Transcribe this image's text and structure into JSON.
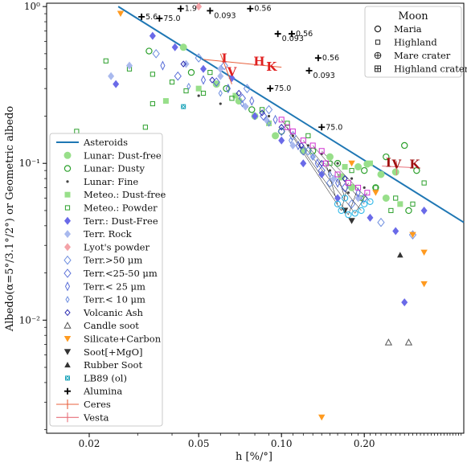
{
  "chart_data": {
    "type": "scatter",
    "xlabel": "h [%/°]",
    "ylabel": "Albedo(α=5°/3.1°/2°) or Geometric albedo",
    "x_scale": "log",
    "y_scale": "log",
    "xlim": [
      0.014,
      0.46
    ],
    "ylim": [
      0.0019,
      1.05
    ],
    "x_ticks": [
      {
        "value": 0.02,
        "label": "0.02"
      },
      {
        "value": 0.05,
        "label": "0.05"
      },
      {
        "value": 0.1,
        "label": "0.10"
      },
      {
        "value": 0.2,
        "label": "0.20"
      }
    ],
    "y_ticks": [
      {
        "value": 0.01,
        "label": "10⁻²"
      },
      {
        "value": 0.1,
        "label": "10⁻¹"
      },
      {
        "value": 1,
        "label": "10⁰"
      }
    ],
    "asteroid_line": {
      "name": "Asteroids",
      "points": [
        [
          0.0255,
          1.0
        ],
        [
          0.46,
          0.042
        ]
      ],
      "color": "#1f77b4"
    },
    "legend_main": [
      {
        "name": "Asteroids",
        "marker": "line",
        "color": "#1f77b4"
      },
      {
        "name": "Lunar: Dust-free",
        "marker": "circle-filled",
        "color": "#98df8a"
      },
      {
        "name": "Lunar: Dusty",
        "marker": "circle-open",
        "color": "#2ca02c"
      },
      {
        "name": "Lunar: Fine",
        "marker": "dot",
        "color": "#444444"
      },
      {
        "name": "Meteo.: Dust-free",
        "marker": "square-filled",
        "color": "#98df8a"
      },
      {
        "name": "Meteo.: Powder",
        "marker": "square-open",
        "color": "#2ca02c"
      },
      {
        "name": "Terr.: Dust-Free",
        "marker": "diamond-filled",
        "color": "#6a6ae8"
      },
      {
        "name": "Terr. Rock",
        "marker": "diamond-filled",
        "color": "#a9b9ee"
      },
      {
        "name": "Lyot's powder",
        "marker": "diamond-filled",
        "color": "#f4a3a8"
      },
      {
        "name": "Terr.>50 μm",
        "marker": "diamond-open",
        "color": "#6f8fe0"
      },
      {
        "name": "Terr.<25-50 μm",
        "marker": "diamond-open",
        "color": "#5a6fd8"
      },
      {
        "name": "Terr.< 25 μm",
        "marker": "diamond-open-thin",
        "color": "#5a6fd8"
      },
      {
        "name": "Terr.< 10 μm",
        "marker": "diamond-open-small",
        "color": "#6f8fe0"
      },
      {
        "name": "Volcanic Ash",
        "marker": "diamond-open-dark",
        "color": "#2b2bb0"
      },
      {
        "name": "Candle soot",
        "marker": "triangle-open",
        "color": "#555555"
      },
      {
        "name": "Silicate+Carbon",
        "marker": "triangle-down-filled",
        "color": "#ff9a1f"
      },
      {
        "name": "Soot[+MgO]",
        "marker": "triangle-down-filled",
        "color": "#333333"
      },
      {
        "name": "Rubber Soot",
        "marker": "triangle-filled",
        "color": "#333333"
      },
      {
        "name": "LB89 (ol)",
        "marker": "x-square",
        "color": "#17a2b8"
      },
      {
        "name": "Alumina",
        "marker": "plus",
        "color": "#000000"
      },
      {
        "name": "Ceres",
        "marker": "errbar",
        "color": "#e8603c"
      },
      {
        "name": "Vesta",
        "marker": "errbar",
        "color": "#e8707a"
      }
    ],
    "legend_moon": {
      "title": "Moon",
      "items": [
        {
          "name": "Maria",
          "marker": "circle-open"
        },
        {
          "name": "Highland",
          "marker": "square-open"
        },
        {
          "name": "Mare crater",
          "marker": "circle-plus"
        },
        {
          "name": "Highland crater",
          "marker": "square-plus"
        }
      ]
    },
    "alumina_points": [
      {
        "x": 0.043,
        "y": 0.97,
        "label": "1.9"
      },
      {
        "x": 0.055,
        "y": 0.94,
        "label": "0.093"
      },
      {
        "x": 0.077,
        "y": 0.97,
        "label": "0.56"
      },
      {
        "x": 0.031,
        "y": 0.86,
        "label": "5.6"
      },
      {
        "x": 0.036,
        "y": 0.84,
        "label": "75.0"
      },
      {
        "x": 0.097,
        "y": 0.67,
        "label": "0.093"
      },
      {
        "x": 0.109,
        "y": 0.67,
        "label": "0.56"
      },
      {
        "x": 0.136,
        "y": 0.47,
        "label": "0.56"
      },
      {
        "x": 0.126,
        "y": 0.39,
        "label": "0.093"
      },
      {
        "x": 0.091,
        "y": 0.3,
        "label": "75.0"
      },
      {
        "x": 0.14,
        "y": 0.17,
        "label": "75.0"
      }
    ],
    "annotations": [
      {
        "text": "I",
        "x": 0.062,
        "y": 0.44,
        "color": "#e02020"
      },
      {
        "text": "V",
        "x": 0.066,
        "y": 0.36,
        "color": "#e02020"
      },
      {
        "text": "H",
        "x": 0.083,
        "y": 0.42,
        "color": "#e02020"
      },
      {
        "text": "K",
        "x": 0.092,
        "y": 0.39,
        "color": "#e02020"
      },
      {
        "text": "I",
        "x": 0.245,
        "y": 0.095,
        "color": "#a01010"
      },
      {
        "text": "V",
        "x": 0.262,
        "y": 0.093,
        "color": "#a01010"
      },
      {
        "text": "K",
        "x": 0.305,
        "y": 0.093,
        "color": "#a01010"
      }
    ],
    "series": [
      {
        "name": "Lunar: Dust-free",
        "marker": "circle-filled",
        "color": "#98df8a",
        "points": [
          [
            0.044,
            0.55
          ],
          [
            0.058,
            0.32
          ],
          [
            0.07,
            0.25
          ],
          [
            0.08,
            0.2
          ],
          [
            0.095,
            0.15
          ],
          [
            0.12,
            0.12
          ],
          [
            0.15,
            0.11
          ],
          [
            0.19,
            0.095
          ],
          [
            0.23,
            0.085
          ],
          [
            0.26,
            0.088
          ],
          [
            0.205,
            0.099
          ],
          [
            0.165,
            0.082
          ],
          [
            0.18,
            0.07
          ],
          [
            0.24,
            0.06
          ]
        ]
      },
      {
        "name": "Lunar: Dusty",
        "marker": "circle-open",
        "color": "#2ca02c",
        "points": [
          [
            0.033,
            0.52
          ],
          [
            0.047,
            0.38
          ],
          [
            0.063,
            0.3
          ],
          [
            0.078,
            0.22
          ],
          [
            0.1,
            0.16
          ],
          [
            0.13,
            0.12
          ],
          [
            0.16,
            0.1
          ],
          [
            0.2,
            0.09
          ],
          [
            0.24,
            0.11
          ],
          [
            0.28,
            0.13
          ],
          [
            0.31,
            0.09
          ],
          [
            0.29,
            0.05
          ],
          [
            0.22,
            0.07
          ]
        ]
      },
      {
        "name": "Lunar: Fine",
        "marker": "dot",
        "color": "#444444",
        "points": [
          [
            0.05,
            0.27
          ],
          [
            0.06,
            0.24
          ],
          [
            0.075,
            0.23
          ],
          [
            0.09,
            0.2
          ],
          [
            0.11,
            0.15
          ],
          [
            0.125,
            0.13
          ],
          [
            0.14,
            0.115
          ],
          [
            0.16,
            0.1
          ],
          [
            0.18,
            0.08
          ],
          [
            0.2,
            0.07
          ],
          [
            0.175,
            0.065
          ],
          [
            0.15,
            0.09
          ]
        ]
      },
      {
        "name": "Meteo.: Dust-free",
        "marker": "square-filled",
        "color": "#98df8a",
        "points": [
          [
            0.038,
            0.25
          ],
          [
            0.05,
            0.3
          ],
          [
            0.068,
            0.27
          ],
          [
            0.09,
            0.18
          ],
          [
            0.17,
            0.095
          ],
          [
            0.21,
            0.1
          ],
          [
            0.27,
            0.055
          ]
        ]
      },
      {
        "name": "Meteo.: Powder",
        "marker": "square-open",
        "color": "#2ca02c",
        "points": [
          [
            0.023,
            0.45
          ],
          [
            0.028,
            0.4
          ],
          [
            0.034,
            0.37
          ],
          [
            0.04,
            0.33
          ],
          [
            0.052,
            0.28
          ],
          [
            0.066,
            0.26
          ],
          [
            0.085,
            0.22
          ],
          [
            0.105,
            0.18
          ],
          [
            0.125,
            0.15
          ],
          [
            0.15,
            0.1
          ],
          [
            0.18,
            0.09
          ],
          [
            0.22,
            0.07
          ],
          [
            0.26,
            0.06
          ],
          [
            0.3,
            0.055
          ],
          [
            0.33,
            0.075
          ],
          [
            0.25,
            0.05
          ],
          [
            0.195,
            0.06
          ],
          [
            0.034,
            0.24
          ],
          [
            0.032,
            0.17
          ],
          [
            0.018,
            0.16
          ],
          [
            0.045,
            0.29
          ],
          [
            0.055,
            0.38
          ]
        ]
      },
      {
        "name": "Terr.: Dust-Free",
        "marker": "diamond-filled",
        "color": "#6a6ae8",
        "points": [
          [
            0.034,
            0.65
          ],
          [
            0.041,
            0.55
          ],
          [
            0.052,
            0.4
          ],
          [
            0.066,
            0.35
          ],
          [
            0.08,
            0.2
          ],
          [
            0.1,
            0.14
          ],
          [
            0.12,
            0.1
          ],
          [
            0.14,
            0.085
          ],
          [
            0.16,
            0.06
          ],
          [
            0.21,
            0.045
          ],
          [
            0.26,
            0.037
          ],
          [
            0.33,
            0.05
          ],
          [
            0.28,
            0.013
          ],
          [
            0.025,
            0.32
          ]
        ]
      },
      {
        "name": "Terr. Rock",
        "marker": "diamond-filled",
        "color": "#a9b9ee",
        "points": [
          [
            0.028,
            0.42
          ],
          [
            0.045,
            0.43
          ],
          [
            0.06,
            0.4
          ],
          [
            0.074,
            0.23
          ],
          [
            0.088,
            0.19
          ],
          [
            0.11,
            0.13
          ],
          [
            0.13,
            0.11
          ],
          [
            0.155,
            0.08
          ],
          [
            0.19,
            0.06
          ],
          [
            0.024,
            0.36
          ],
          [
            0.06,
            0.36
          ]
        ]
      },
      {
        "name": "Lyot's powder",
        "marker": "diamond-filled",
        "color": "#f4a3a8",
        "points": [
          [
            0.05,
            1.0
          ]
        ]
      },
      {
        "name": "Terr.>50 μm",
        "marker": "diamond-open",
        "color": "#6f8fe0",
        "points": [
          [
            0.035,
            0.5
          ],
          [
            0.05,
            0.47
          ],
          [
            0.062,
            0.42
          ],
          [
            0.075,
            0.3
          ],
          [
            0.09,
            0.22
          ],
          [
            0.11,
            0.15
          ],
          [
            0.125,
            0.12
          ],
          [
            0.15,
            0.075
          ],
          [
            0.18,
            0.055
          ],
          [
            0.23,
            0.042
          ],
          [
            0.3,
            0.035
          ]
        ]
      },
      {
        "name": "Terr.<25-50 μm",
        "marker": "diamond-open",
        "color": "#5a6fd8",
        "points": [
          [
            0.042,
            0.36
          ],
          [
            0.058,
            0.33
          ],
          [
            0.072,
            0.26
          ],
          [
            0.086,
            0.2
          ],
          [
            0.1,
            0.16
          ],
          [
            0.12,
            0.12
          ],
          [
            0.14,
            0.09
          ],
          [
            0.17,
            0.07
          ],
          [
            0.2,
            0.06
          ]
        ]
      },
      {
        "name": "Terr.< 25 μm",
        "marker": "diamond-open-thin",
        "color": "#5a6fd8",
        "points": [
          [
            0.037,
            0.42
          ],
          [
            0.052,
            0.34
          ],
          [
            0.064,
            0.3
          ],
          [
            0.078,
            0.25
          ],
          [
            0.095,
            0.19
          ],
          [
            0.115,
            0.13
          ],
          [
            0.135,
            0.1
          ],
          [
            0.16,
            0.075
          ],
          [
            0.19,
            0.065
          ]
        ]
      },
      {
        "name": "Terr.< 10 μm",
        "marker": "diamond-open-small",
        "color": "#6f8fe0",
        "points": [
          [
            0.046,
            0.31
          ],
          [
            0.06,
            0.28
          ],
          [
            0.072,
            0.24
          ],
          [
            0.09,
            0.18
          ],
          [
            0.108,
            0.14
          ],
          [
            0.13,
            0.11
          ],
          [
            0.15,
            0.085
          ]
        ]
      },
      {
        "name": "Volcanic Ash",
        "marker": "diamond-open-dark",
        "color": "#2b2bb0",
        "points": [
          [
            0.044,
            0.43
          ],
          [
            0.056,
            0.34
          ],
          [
            0.07,
            0.28
          ],
          [
            0.085,
            0.21
          ],
          [
            0.1,
            0.17
          ],
          [
            0.118,
            0.13
          ],
          [
            0.14,
            0.1
          ],
          [
            0.17,
            0.08
          ]
        ]
      },
      {
        "name": "Candle soot",
        "marker": "triangle-open",
        "color": "#555555",
        "points": [
          [
            0.245,
            0.0072
          ],
          [
            0.29,
            0.0072
          ]
        ]
      },
      {
        "name": "Silicate+Carbon",
        "marker": "triangle-down-filled",
        "color": "#ff9a1f",
        "points": [
          [
            0.026,
            0.9
          ],
          [
            0.14,
            0.0024
          ],
          [
            0.18,
            0.1
          ],
          [
            0.22,
            0.065
          ],
          [
            0.3,
            0.035
          ],
          [
            0.33,
            0.027
          ],
          [
            0.33,
            0.017
          ]
        ]
      },
      {
        "name": "Soot[+MgO]",
        "marker": "triangle-down-filled",
        "color": "#333333",
        "points": [
          [
            0.17,
            0.05
          ],
          [
            0.18,
            0.043
          ]
        ]
      },
      {
        "name": "Rubber Soot",
        "marker": "triangle-filled",
        "color": "#333333",
        "points": [
          [
            0.27,
            0.026
          ]
        ]
      },
      {
        "name": "LB89 (ol)",
        "marker": "x-square",
        "color": "#17a2b8",
        "points": [
          [
            0.044,
            0.23
          ]
        ]
      },
      {
        "name": "Moon: Maria (open circles)",
        "marker": "circle-open-cyan",
        "color": "#2fb8e8",
        "points": [
          [
            0.165,
            0.05
          ],
          [
            0.175,
            0.047
          ],
          [
            0.185,
            0.048
          ],
          [
            0.195,
            0.05
          ],
          [
            0.2,
            0.055
          ],
          [
            0.21,
            0.057
          ],
          [
            0.16,
            0.055
          ],
          [
            0.17,
            0.06
          ]
        ]
      },
      {
        "name": "Moon: Highland (open squares)",
        "marker": "square-open-magenta",
        "color": "#d030d0",
        "points": [
          [
            0.1,
            0.19
          ],
          [
            0.105,
            0.17
          ],
          [
            0.11,
            0.16
          ],
          [
            0.12,
            0.14
          ],
          [
            0.13,
            0.13
          ],
          [
            0.14,
            0.12
          ],
          [
            0.145,
            0.1
          ],
          [
            0.16,
            0.085
          ],
          [
            0.175,
            0.075
          ],
          [
            0.19,
            0.07
          ],
          [
            0.205,
            0.065
          ]
        ]
      }
    ]
  }
}
